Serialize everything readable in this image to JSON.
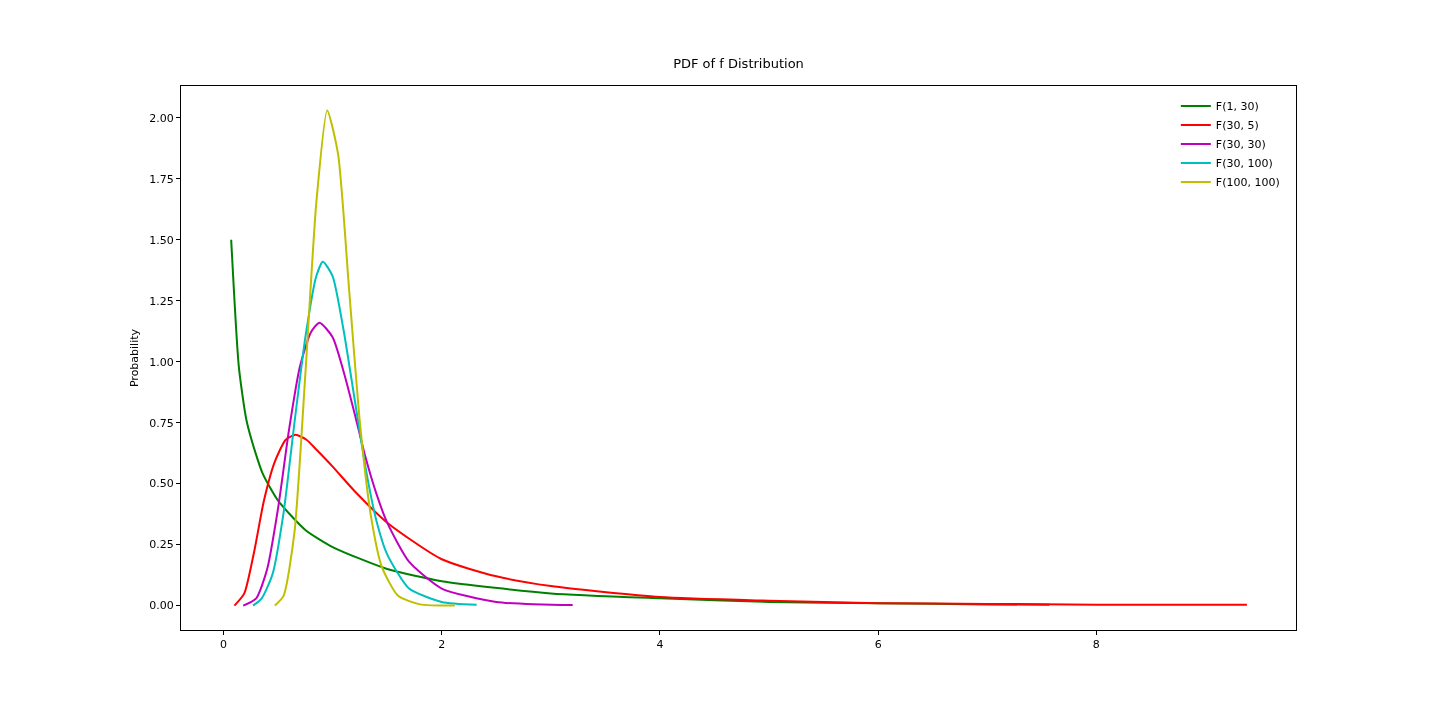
{
  "chart_data": {
    "type": "line",
    "title": "PDF of f Distribution",
    "ylabel": "Probability",
    "xlim": [
      -0.39,
      9.83
    ],
    "ylim": [
      -0.1,
      2.13
    ],
    "xticks": [
      0,
      2,
      4,
      6,
      8
    ],
    "yticks": [
      {
        "value": 0,
        "label": "0.00"
      },
      {
        "value": 0.25,
        "label": "0.25"
      },
      {
        "value": 0.5,
        "label": "0.50"
      },
      {
        "value": 0.75,
        "label": "0.75"
      },
      {
        "value": 1,
        "label": "1.00"
      },
      {
        "value": 1.25,
        "label": "1.25"
      },
      {
        "value": 1.5,
        "label": "1.50"
      },
      {
        "value": 1.75,
        "label": "1.75"
      },
      {
        "value": 2,
        "label": "2.00"
      }
    ],
    "legend": "top right",
    "line_style": "solid",
    "marker": "none",
    "series": [
      {
        "name": "F(1, 30)",
        "color": "#008000",
        "x": [
          0.07,
          0.14,
          0.21,
          0.29,
          0.36,
          0.5,
          0.75,
          1.0,
          1.5,
          2,
          3,
          4,
          5,
          6,
          7,
          7.57
        ],
        "values": [
          1.5,
          0.98,
          0.76,
          0.63,
          0.54,
          0.43,
          0.31,
          0.24,
          0.15,
          0.1,
          0.05,
          0.03,
          0.015,
          0.01,
          0.005,
          0.003
        ]
      },
      {
        "name": "F(30, 5)",
        "color": "#ff0000",
        "x": [
          0.1,
          0.19,
          0.28,
          0.37,
          0.47,
          0.57,
          0.66,
          0.76,
          0.85,
          1.0,
          1.2,
          1.5,
          2,
          2.5,
          3,
          4,
          5,
          6,
          7,
          8,
          9.38
        ],
        "values": [
          0,
          0.05,
          0.22,
          0.43,
          0.59,
          0.68,
          0.7,
          0.68,
          0.64,
          0.57,
          0.47,
          0.34,
          0.19,
          0.12,
          0.08,
          0.035,
          0.02,
          0.01,
          0.007,
          0.004,
          0.003
        ]
      },
      {
        "name": "F(30, 30)",
        "color": "#bf00bf",
        "x": [
          0.18,
          0.3,
          0.4,
          0.5,
          0.6,
          0.7,
          0.8,
          0.88,
          1.0,
          1.1,
          1.2,
          1.3,
          1.4,
          1.5,
          1.7,
          2.0,
          2.5,
          3.2
        ],
        "values": [
          0,
          0.03,
          0.15,
          0.4,
          0.72,
          0.98,
          1.12,
          1.16,
          1.1,
          0.96,
          0.79,
          0.61,
          0.46,
          0.34,
          0.18,
          0.07,
          0.015,
          0.002
        ]
      },
      {
        "name": "F(30, 100)",
        "color": "#00bfbf",
        "x": [
          0.27,
          0.35,
          0.45,
          0.55,
          0.65,
          0.75,
          0.85,
          0.91,
          1.0,
          1.1,
          1.2,
          1.3,
          1.4,
          1.5,
          1.7,
          2.0,
          2.32
        ],
        "values": [
          0,
          0.03,
          0.13,
          0.38,
          0.75,
          1.1,
          1.35,
          1.41,
          1.35,
          1.13,
          0.85,
          0.57,
          0.35,
          0.21,
          0.07,
          0.015,
          0.003
        ]
      },
      {
        "name": "F(100, 100)",
        "color": "#bfbf00",
        "x": [
          0.47,
          0.55,
          0.65,
          0.75,
          0.85,
          0.95,
          1.05,
          1.15,
          1.25,
          1.35,
          1.45,
          1.6,
          1.8,
          2.12
        ],
        "values": [
          0,
          0.04,
          0.3,
          0.95,
          1.65,
          2.03,
          1.85,
          1.3,
          0.75,
          0.37,
          0.16,
          0.04,
          0.005,
          0
        ]
      }
    ]
  }
}
